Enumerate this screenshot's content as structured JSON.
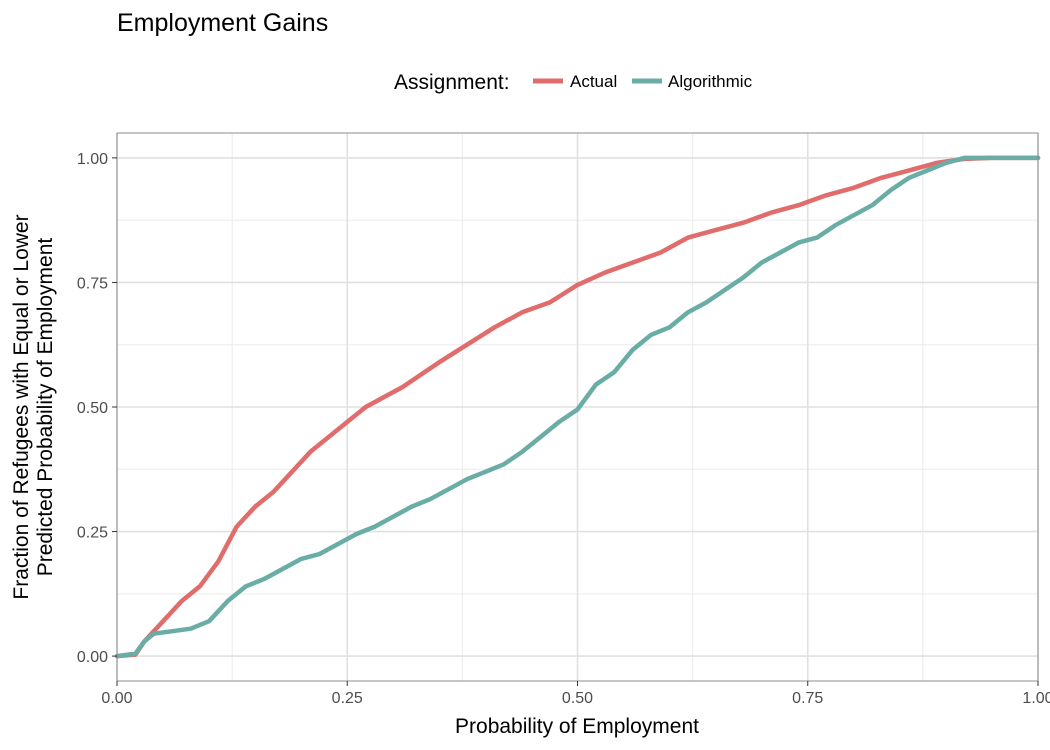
{
  "chart_data": {
    "type": "line",
    "title": "Employment Gains",
    "xlabel": "Probability of Employment",
    "ylabel_lines": [
      "Fraction of Refugees with Equal or Lower",
      "Predicted Probability of Employment"
    ],
    "xlim": [
      0,
      1
    ],
    "ylim": [
      -0.05,
      1.05
    ],
    "x_ticks": [
      0,
      0.25,
      0.5,
      0.75,
      1
    ],
    "x_tick_labels": [
      "0.00",
      "0.25",
      "0.50",
      "0.75",
      "1.00"
    ],
    "y_ticks": [
      0,
      0.25,
      0.5,
      0.75,
      1
    ],
    "y_tick_labels": [
      "0.00",
      "0.25",
      "0.50",
      "0.75",
      "1.00"
    ],
    "grid": true,
    "legend": {
      "title": "Assignment:",
      "position": "top"
    },
    "series": [
      {
        "name": "Actual",
        "color": "#E06C6C",
        "x": [
          0,
          0.02,
          0.03,
          0.05,
          0.07,
          0.09,
          0.11,
          0.13,
          0.15,
          0.17,
          0.19,
          0.21,
          0.23,
          0.25,
          0.27,
          0.29,
          0.31,
          0.33,
          0.35,
          0.38,
          0.41,
          0.44,
          0.47,
          0.5,
          0.53,
          0.56,
          0.59,
          0.62,
          0.65,
          0.68,
          0.71,
          0.74,
          0.77,
          0.8,
          0.83,
          0.86,
          0.89,
          0.92,
          0.95,
          1.0
        ],
        "y": [
          0,
          0.003,
          0.03,
          0.07,
          0.11,
          0.14,
          0.19,
          0.26,
          0.3,
          0.33,
          0.37,
          0.41,
          0.44,
          0.47,
          0.5,
          0.52,
          0.54,
          0.565,
          0.59,
          0.625,
          0.66,
          0.69,
          0.71,
          0.745,
          0.77,
          0.79,
          0.81,
          0.84,
          0.855,
          0.87,
          0.89,
          0.905,
          0.925,
          0.94,
          0.96,
          0.975,
          0.99,
          0.998,
          1.0,
          1.0
        ]
      },
      {
        "name": "Algorithmic",
        "color": "#6AADA6",
        "x": [
          0,
          0.02,
          0.03,
          0.04,
          0.06,
          0.08,
          0.1,
          0.12,
          0.14,
          0.16,
          0.18,
          0.2,
          0.22,
          0.24,
          0.26,
          0.28,
          0.3,
          0.32,
          0.34,
          0.36,
          0.38,
          0.4,
          0.42,
          0.44,
          0.46,
          0.48,
          0.5,
          0.52,
          0.54,
          0.56,
          0.58,
          0.6,
          0.62,
          0.64,
          0.66,
          0.68,
          0.7,
          0.72,
          0.74,
          0.76,
          0.78,
          0.8,
          0.82,
          0.84,
          0.86,
          0.88,
          0.9,
          0.92,
          0.94,
          0.96,
          1.0
        ],
        "y": [
          0,
          0.005,
          0.03,
          0.045,
          0.05,
          0.055,
          0.07,
          0.11,
          0.14,
          0.155,
          0.175,
          0.195,
          0.205,
          0.225,
          0.245,
          0.26,
          0.28,
          0.3,
          0.315,
          0.335,
          0.355,
          0.37,
          0.385,
          0.41,
          0.44,
          0.47,
          0.495,
          0.545,
          0.57,
          0.615,
          0.645,
          0.66,
          0.69,
          0.71,
          0.735,
          0.76,
          0.79,
          0.81,
          0.83,
          0.84,
          0.865,
          0.885,
          0.905,
          0.935,
          0.96,
          0.975,
          0.99,
          1.0,
          1.0,
          1.0,
          1.0
        ]
      }
    ]
  }
}
